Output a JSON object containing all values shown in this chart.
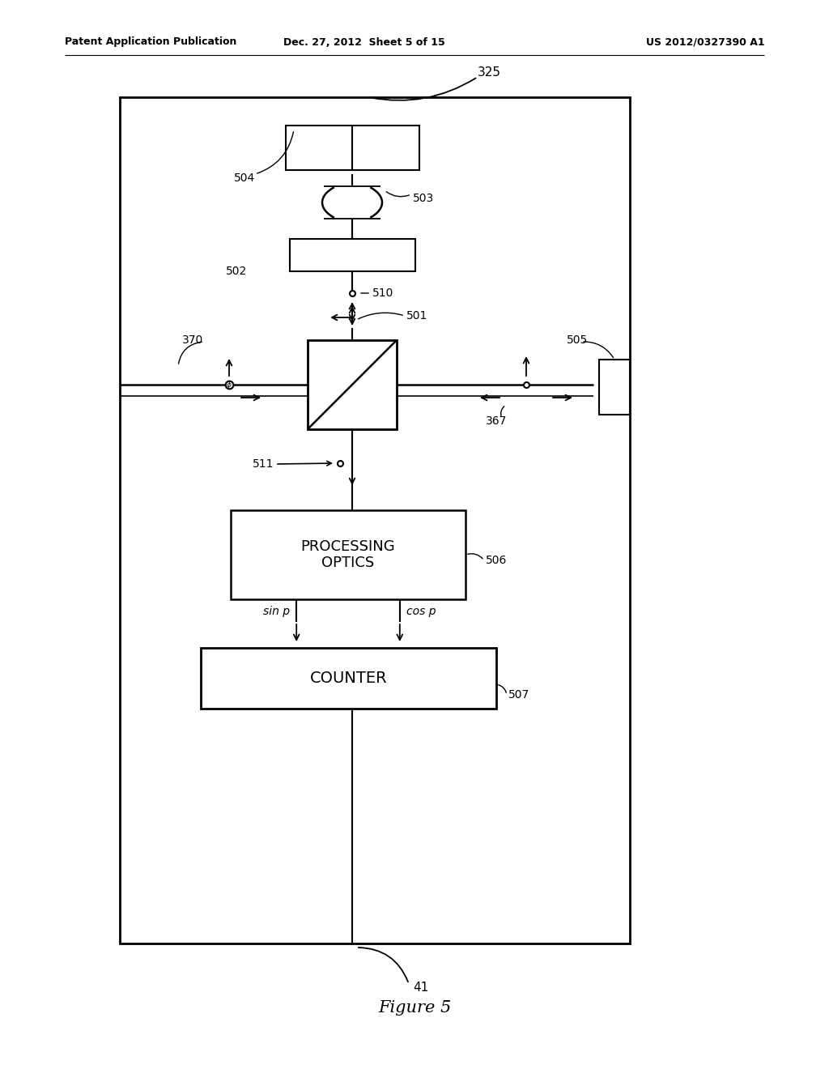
{
  "bg_color": "#ffffff",
  "header_left": "Patent Application Publication",
  "header_mid": "Dec. 27, 2012  Sheet 5 of 15",
  "header_right": "US 2012/0327390 A1",
  "footer": "Figure 5",
  "label_325": "325",
  "label_504": "504",
  "label_503": "503",
  "label_510": "510",
  "label_502": "502",
  "label_501": "501",
  "label_505": "505",
  "label_370": "370",
  "label_367": "367",
  "label_511": "511",
  "label_506": "506",
  "label_507": "507",
  "label_41": "41",
  "processing_optics_text": "PROCESSING\nOPTICS",
  "counter_text": "COUNTER",
  "sin_p_text": "sin p",
  "cos_p_text": "cos p"
}
